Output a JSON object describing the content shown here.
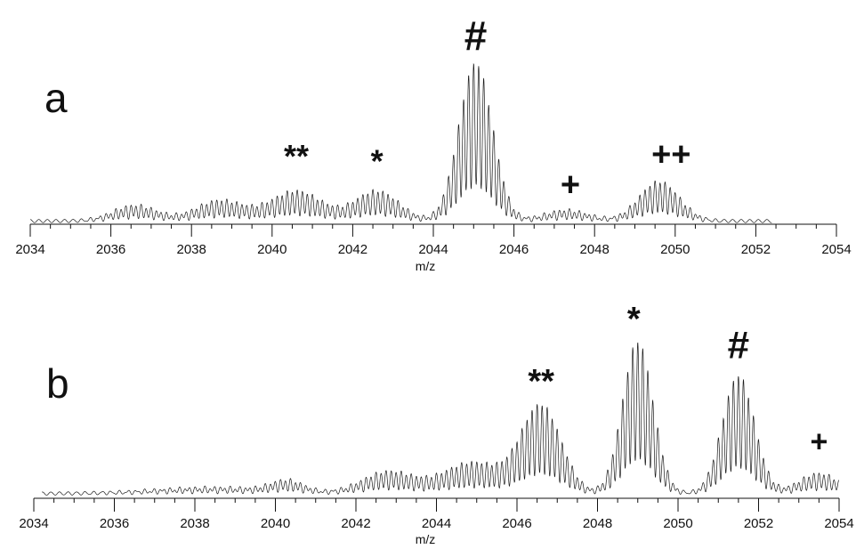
{
  "chart_data": [
    {
      "type": "line",
      "panel_label": "a",
      "xlabel": "m/z",
      "ylabel": "",
      "xlim": [
        2034,
        2054
      ],
      "ylim": [
        0,
        1
      ],
      "x_ticks": [
        2034,
        2036,
        2038,
        2040,
        2042,
        2044,
        2046,
        2048,
        2050,
        2052,
        2054
      ],
      "x_tick_labels": [
        "2034",
        "2036",
        "2038",
        "2040",
        "2042",
        "2044",
        "2046",
        "2048",
        "2050",
        "2052",
        "2054"
      ],
      "grid": false,
      "isotope_spacing": 0.125,
      "baseline": 0.01,
      "noise": 0.02,
      "envelopes": [
        {
          "center": 2036.6,
          "height": 0.1,
          "width": 0.55
        },
        {
          "center": 2038.7,
          "height": 0.13,
          "width": 0.6
        },
        {
          "center": 2040.6,
          "height": 0.19,
          "width": 0.65
        },
        {
          "center": 2042.6,
          "height": 0.19,
          "width": 0.55
        },
        {
          "center": 2045.05,
          "height": 1.0,
          "width": 0.42
        },
        {
          "center": 2047.3,
          "height": 0.07,
          "width": 0.55
        },
        {
          "center": 2049.6,
          "height": 0.25,
          "width": 0.5
        }
      ],
      "annotations": [
        {
          "text": "**",
          "x": 2040.6,
          "y": 0.36
        },
        {
          "text": "*",
          "x": 2042.6,
          "y": 0.33
        },
        {
          "text": "#",
          "x": 2045.05,
          "y": 1.1
        },
        {
          "text": "+",
          "x": 2047.4,
          "y": 0.18
        },
        {
          "text": "++",
          "x": 2049.9,
          "y": 0.37
        }
      ]
    },
    {
      "type": "line",
      "panel_label": "b",
      "xlabel": "m/z",
      "ylabel": "",
      "xlim": [
        2034,
        2054
      ],
      "ylim": [
        0,
        1
      ],
      "x_ticks": [
        2034,
        2036,
        2038,
        2040,
        2042,
        2044,
        2046,
        2048,
        2050,
        2052,
        2054
      ],
      "x_tick_labels": [
        "2034",
        "2036",
        "2038",
        "2040",
        "2042",
        "2044",
        "2046",
        "2048",
        "2050",
        "2052",
        "2054"
      ],
      "grid": false,
      "isotope_spacing": 0.125,
      "baseline": 0.02,
      "noise": 0.02,
      "envelopes": [
        {
          "center": 2038.5,
          "height": 0.04,
          "width": 1.5
        },
        {
          "center": 2040.3,
          "height": 0.07,
          "width": 0.4
        },
        {
          "center": 2042.8,
          "height": 0.14,
          "width": 0.65
        },
        {
          "center": 2044.9,
          "height": 0.2,
          "width": 0.75
        },
        {
          "center": 2046.6,
          "height": 0.56,
          "width": 0.5
        },
        {
          "center": 2049.0,
          "height": 0.98,
          "width": 0.38
        },
        {
          "center": 2051.5,
          "height": 0.76,
          "width": 0.4
        },
        {
          "center": 2053.5,
          "height": 0.13,
          "width": 0.5
        }
      ],
      "annotations": [
        {
          "text": "**",
          "x": 2046.6,
          "y": 0.68
        },
        {
          "text": "*",
          "x": 2048.9,
          "y": 1.08
        },
        {
          "text": "#",
          "x": 2051.5,
          "y": 0.9
        },
        {
          "text": "+",
          "x": 2053.5,
          "y": 0.3
        }
      ]
    }
  ]
}
